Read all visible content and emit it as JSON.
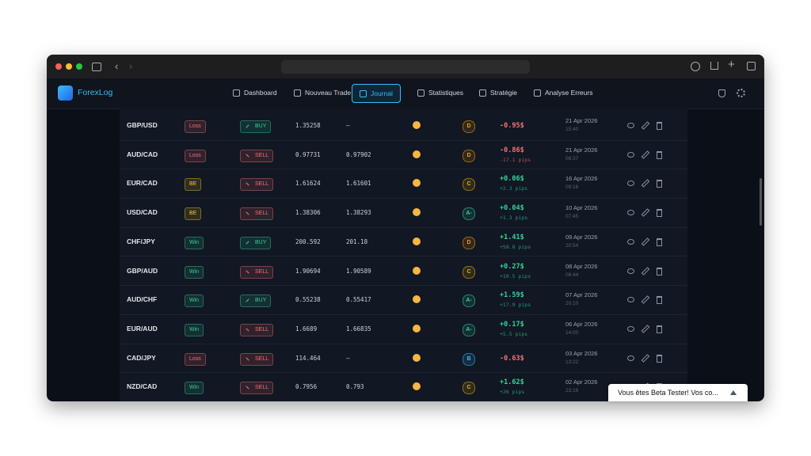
{
  "app": {
    "name": "ForexLog",
    "nav": [
      "Dashboard",
      "Nouveau Trade",
      "Journal",
      "Statistiques",
      "Stratégie",
      "Analyse Erreurs"
    ],
    "active_nav": 2
  },
  "trades": [
    {
      "pair": "GBP/USD",
      "status": "Loss",
      "status_color": "#f87171",
      "direction": "BUY",
      "direction_color": "#34d399",
      "entry": "1.35258",
      "exit": "–",
      "grade": "D",
      "grade_color": "#f59e0b",
      "pnl": "-0.95$",
      "pnl_color": "#f87171",
      "pips": null,
      "date": "21 Apr 2026",
      "time": "15:40"
    },
    {
      "pair": "AUD/CAD",
      "status": "Loss",
      "status_color": "#f87171",
      "direction": "SELL",
      "direction_color": "#f87171",
      "entry": "0.97731",
      "exit": "0.97902",
      "grade": "D",
      "grade_color": "#f59e0b",
      "pnl": "-0.86$",
      "pnl_color": "#f87171",
      "pips": "-17.1 pips",
      "date": "21 Apr 2026",
      "time": "08:37"
    },
    {
      "pair": "EUR/CAD",
      "status": "BE",
      "status_color": "#facc15",
      "direction": "SELL",
      "direction_color": "#f87171",
      "entry": "1.61624",
      "exit": "1.61601",
      "grade": "C",
      "grade_color": "#eab308",
      "pnl": "+0.06$",
      "pnl_color": "#34d399",
      "pips": "+2.3 pips",
      "date": "16 Apr 2026",
      "time": "09:16"
    },
    {
      "pair": "USD/CAD",
      "status": "BE",
      "status_color": "#facc15",
      "direction": "SELL",
      "direction_color": "#f87171",
      "entry": "1.38306",
      "exit": "1.38293",
      "grade": "A-",
      "grade_color": "#34d399",
      "pnl": "+0.04$",
      "pnl_color": "#34d399",
      "pips": "+1.3 pips",
      "date": "10 Apr 2026",
      "time": "07:45"
    },
    {
      "pair": "CHF/JPY",
      "status": "Win",
      "status_color": "#34d399",
      "direction": "BUY",
      "direction_color": "#34d399",
      "entry": "200.592",
      "exit": "201.18",
      "grade": "D",
      "grade_color": "#f59e0b",
      "pnl": "+1.41$",
      "pnl_color": "#34d399",
      "pips": "+58.8 pips",
      "date": "09 Apr 2026",
      "time": "20:54"
    },
    {
      "pair": "GBP/AUD",
      "status": "Win",
      "status_color": "#34d399",
      "direction": "SELL",
      "direction_color": "#f87171",
      "entry": "1.90694",
      "exit": "1.90589",
      "grade": "C",
      "grade_color": "#eab308",
      "pnl": "+0.27$",
      "pnl_color": "#34d399",
      "pips": "+10.5 pips",
      "date": "08 Apr 2026",
      "time": "08:44"
    },
    {
      "pair": "AUD/CHF",
      "status": "Win",
      "status_color": "#34d399",
      "direction": "BUY",
      "direction_color": "#34d399",
      "entry": "0.55238",
      "exit": "0.55417",
      "grade": "A-",
      "grade_color": "#34d399",
      "pnl": "+1.59$",
      "pnl_color": "#34d399",
      "pips": "+17.9 pips",
      "date": "07 Apr 2026",
      "time": "20:10"
    },
    {
      "pair": "EUR/AUD",
      "status": "Win",
      "status_color": "#34d399",
      "direction": "SELL",
      "direction_color": "#f87171",
      "entry": "1.6689",
      "exit": "1.66835",
      "grade": "A-",
      "grade_color": "#34d399",
      "pnl": "+0.17$",
      "pnl_color": "#34d399",
      "pips": "+5.5 pips",
      "date": "06 Apr 2026",
      "time": "14:00"
    },
    {
      "pair": "CAD/JPY",
      "status": "Loss",
      "status_color": "#f87171",
      "direction": "SELL",
      "direction_color": "#f87171",
      "entry": "114.464",
      "exit": "–",
      "grade": "B",
      "grade_color": "#38bdf8",
      "pnl": "-0.63$",
      "pnl_color": "#f87171",
      "pips": null,
      "date": "03 Apr 2026",
      "time": "13:22"
    },
    {
      "pair": "NZD/CAD",
      "status": "Win",
      "status_color": "#34d399",
      "direction": "SELL",
      "direction_color": "#f87171",
      "entry": "0.7956",
      "exit": "0.793",
      "grade": "C",
      "grade_color": "#eab308",
      "pnl": "+1.62$",
      "pnl_color": "#34d399",
      "pips": "+26 pips",
      "date": "02 Apr 2026",
      "time": "23:16"
    }
  ],
  "toast": "Vous êtes Beta Tester! Vos co..."
}
